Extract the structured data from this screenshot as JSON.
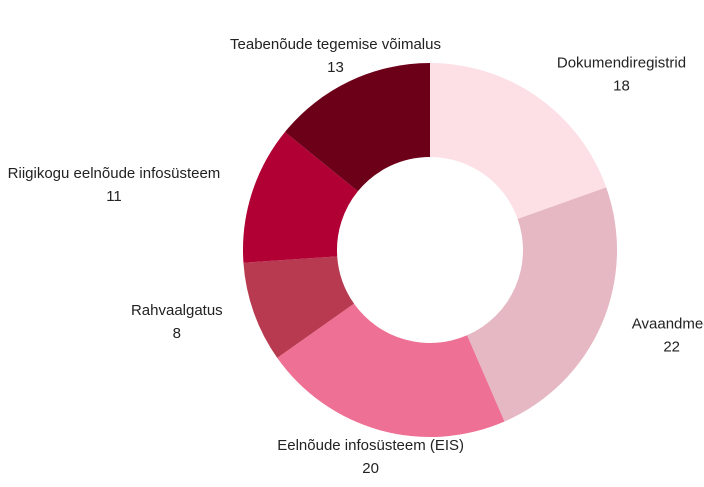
{
  "chart_data": {
    "type": "donut",
    "categories": [
      "Dokumendiregistrid",
      "Avaandmed",
      "Eelnõude infosüsteem (EIS)",
      "Rahvaalgatus",
      "Riigikogu eelnõude infosüsteem",
      "Teabenõude tegemise võimalus"
    ],
    "values": [
      18,
      22,
      20,
      8,
      11,
      13
    ],
    "colors": [
      "#fde0e6",
      "#e6b8c4",
      "#ee7094",
      "#b83a50",
      "#b00034",
      "#6d0019"
    ]
  }
}
